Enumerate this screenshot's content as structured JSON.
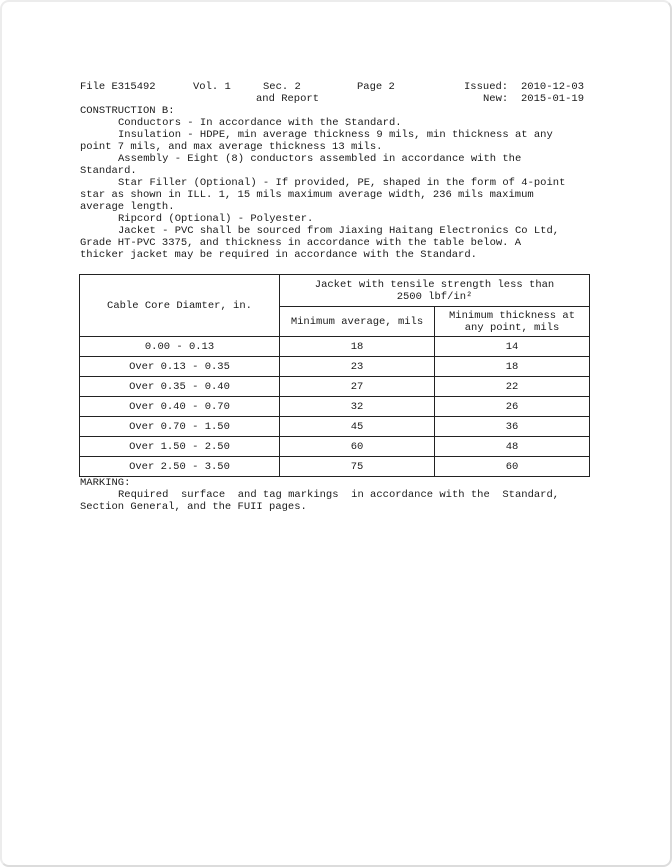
{
  "header": {
    "file": "File E315492",
    "volume": "Vol. 1",
    "section_line1": "Sec. 2",
    "section_line2": "and Report",
    "page": "Page 2",
    "issued_label": "Issued:",
    "issued_date": "2010-12-03",
    "new_label": "New:",
    "new_date": "2015-01-19"
  },
  "construction": {
    "heading": "CONSTRUCTION B:",
    "paragraphs": [
      "Conductors - In accordance with the Standard.",
      "Insulation - HDPE, min average thickness 9 mils, min thickness at any\npoint 7 mils, and max average thickness 13 mils.",
      "Assembly - Eight (8) conductors assembled in accordance with the\nStandard.",
      "Star Filler (Optional) - If provided, PE, shaped in the form of 4-point\nstar as shown in ILL. 1, 15 mils maximum average width, 236 mils maximum\naverage length.",
      "Ripcord (Optional) - Polyester.",
      "Jacket - PVC shall be sourced from Jiaxing Haitang Electronics Co Ltd,\nGrade HT-PVC 3375, and thickness in accordance with the table below. A\nthicker jacket may be required in accordance with the Standard."
    ]
  },
  "table": {
    "col1_header": "Cable Core Diamter, in.",
    "span_header": "Jacket with tensile strength less than\n2500 lbf/in²",
    "sub_header_avg": "Minimum average, mils",
    "sub_header_point": "Minimum thickness at\nany point, mils",
    "rows": [
      [
        "0.00 - 0.13",
        "18",
        "14"
      ],
      [
        "Over 0.13 - 0.35",
        "23",
        "18"
      ],
      [
        "Over 0.35 - 0.40",
        "27",
        "22"
      ],
      [
        "Over 0.40 - 0.70",
        "32",
        "26"
      ],
      [
        "Over 0.70 - 1.50",
        "45",
        "36"
      ],
      [
        "Over 1.50 - 2.50",
        "60",
        "48"
      ],
      [
        "Over 2.50 - 3.50",
        "75",
        "60"
      ]
    ]
  },
  "marking": {
    "heading": "MARKING:",
    "paragraph": "Required  surface  and tag markings  in accordance with the  Standard,\nSection General, and the FUII pages."
  }
}
